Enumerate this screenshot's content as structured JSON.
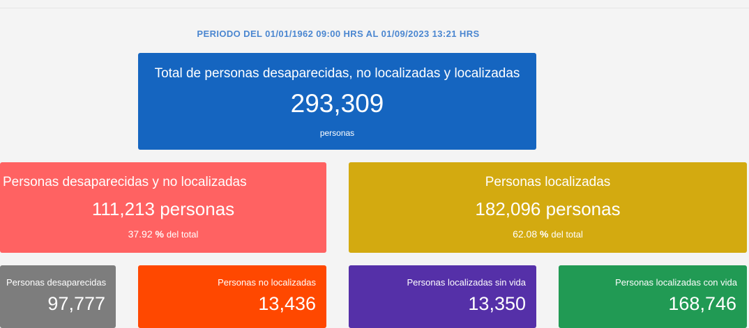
{
  "period": "PERIODO DEL 01/01/1962 09:00 HRS AL 01/09/2023 13:21 HRS",
  "total": {
    "title": "Total de personas desaparecidas, no localizadas y localizadas",
    "value": "293,309",
    "unit": "personas"
  },
  "missing_not_located": {
    "title": "Personas desaparecidas y no localizadas",
    "value": "111,213 personas",
    "percent": "37.92",
    "percent_symbol": "%",
    "percent_suffix": "del total"
  },
  "located": {
    "title": "Personas localizadas",
    "value": "182,096 personas",
    "percent": "62.08",
    "percent_symbol": "%",
    "percent_suffix": "del total"
  },
  "breakdown": {
    "desaparecidas": {
      "title": "Personas desaparecidas",
      "value": "97,777"
    },
    "no_localizadas": {
      "title": "Personas no localizadas",
      "value": "13,436"
    },
    "localizadas_sin_vida": {
      "title": "Personas localizadas sin vida",
      "value": "13,350"
    },
    "localizadas_con_vida": {
      "title": "Personas localizadas con vida",
      "value": "168,746"
    }
  },
  "colors": {
    "total": "#1565c0",
    "missing": "#ff6262",
    "located": "#d3aa10",
    "desaparecidas": "#7d7d7d",
    "no_localizadas": "#ff4800",
    "sin_vida": "#5530a8",
    "con_vida": "#219a54"
  }
}
